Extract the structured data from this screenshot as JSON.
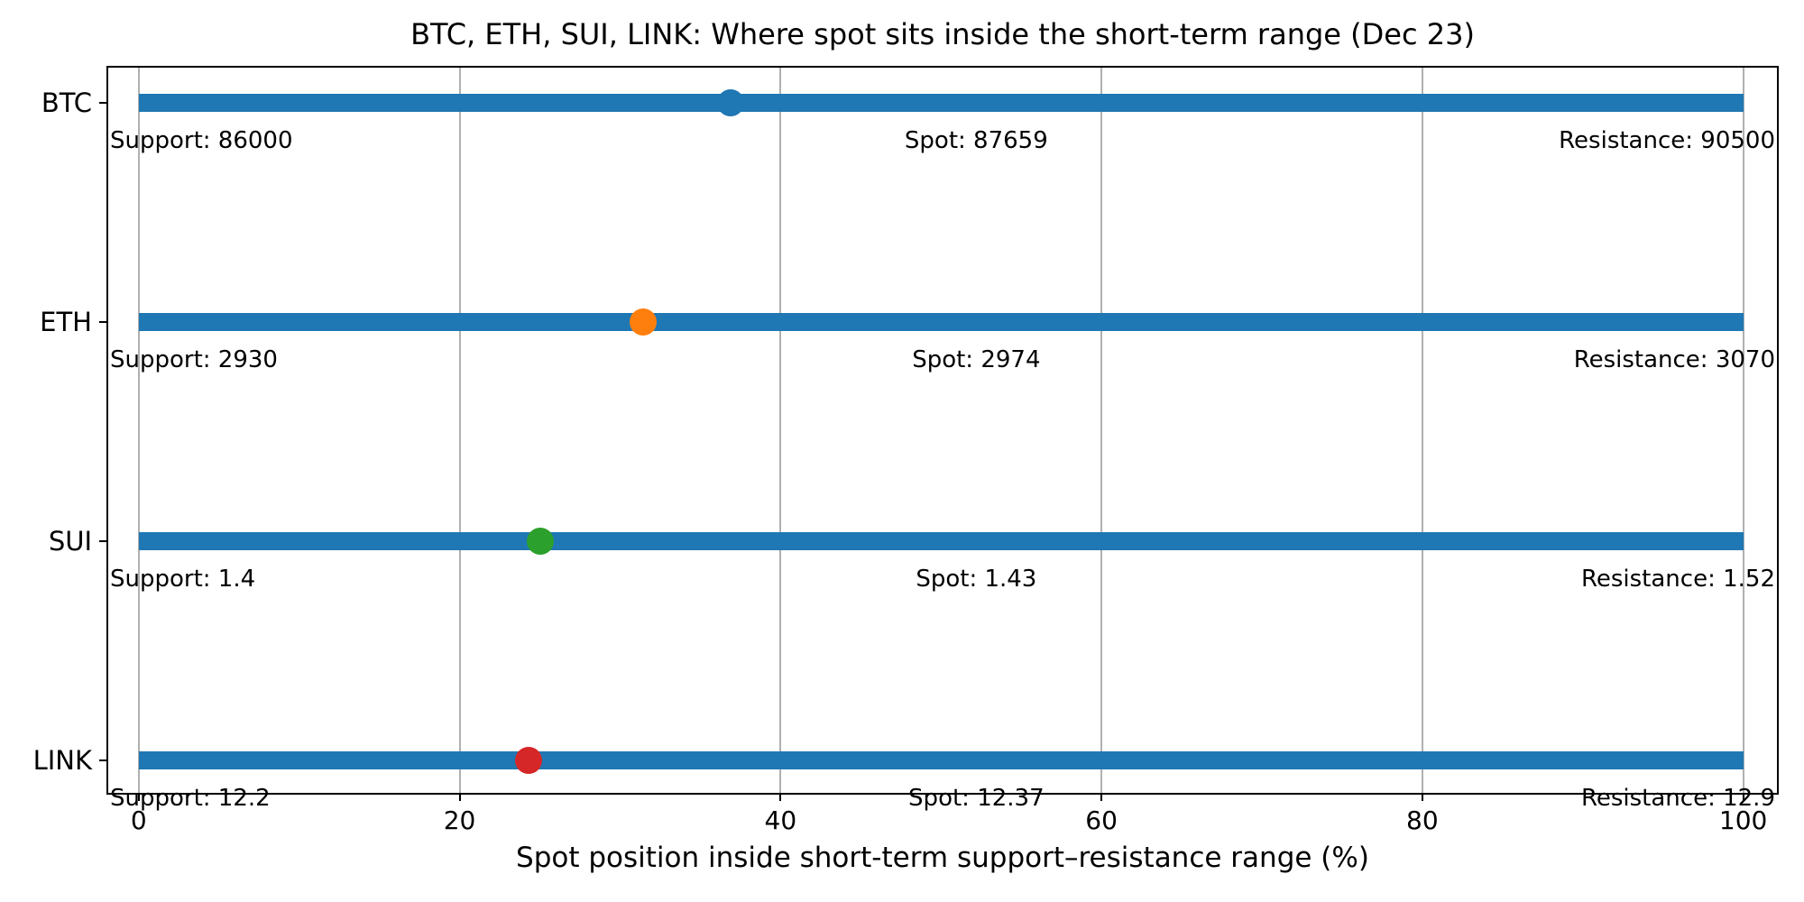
{
  "chart_data": {
    "type": "bar",
    "title": "BTC, ETH, SUI, LINK: Where spot sits inside the short-term range (Dec 23)",
    "xlabel": "Spot position inside short-term support–resistance range (%)",
    "xlim": [
      -1.9,
      102.1
    ],
    "xticks": [
      0,
      20,
      40,
      60,
      80,
      100
    ],
    "xtick_labels": [
      "0",
      "20",
      "40",
      "60",
      "80",
      "100"
    ],
    "grid": true,
    "legend": "none",
    "bar_color": "#1f77b4",
    "bar_range": [
      0,
      100
    ],
    "spot_label_center_x": 52.2,
    "categories": [
      "BTC",
      "ETH",
      "SUI",
      "LINK"
    ],
    "series": [
      {
        "asset": "BTC",
        "support": 86000,
        "spot": 87659,
        "resistance": 90500,
        "marker_color": "#1f77b4",
        "support_label": "Support: 86000",
        "spot_label": "Spot: 87659",
        "resistance_label": "Resistance: 90500"
      },
      {
        "asset": "ETH",
        "support": 2930,
        "spot": 2974,
        "resistance": 3070,
        "marker_color": "#ff7f0e",
        "support_label": "Support: 2930",
        "spot_label": "Spot: 2974",
        "resistance_label": "Resistance: 3070"
      },
      {
        "asset": "SUI",
        "support": 1.4,
        "spot": 1.43,
        "resistance": 1.52,
        "marker_color": "#2ca02c",
        "support_label": "Support: 1.4",
        "spot_label": "Spot: 1.43",
        "resistance_label": "Resistance: 1.52"
      },
      {
        "asset": "LINK",
        "support": 12.2,
        "spot": 12.37,
        "resistance": 12.9,
        "marker_color": "#d62728",
        "support_label": "Support: 12.2",
        "spot_label": "Spot: 12.37",
        "resistance_label": "Resistance: 12.9"
      }
    ]
  }
}
